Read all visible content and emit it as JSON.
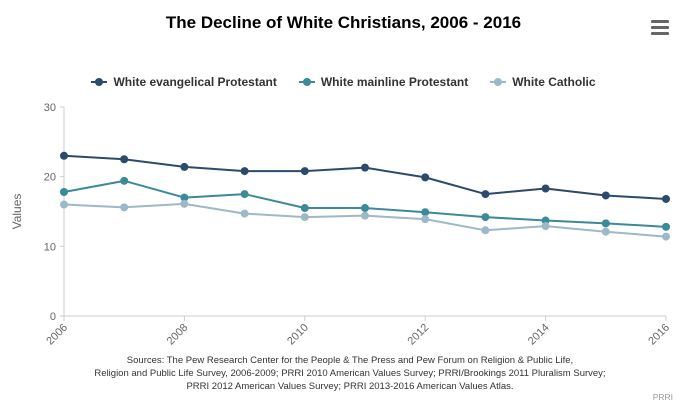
{
  "chart_data": {
    "type": "line",
    "title": "The Decline of White Christians, 2006 - 2016",
    "ylabel": "Values",
    "xlabel": "",
    "x": [
      2006,
      2007,
      2008,
      2009,
      2010,
      2011,
      2012,
      2013,
      2014,
      2015,
      2016
    ],
    "x_ticks": [
      "2006",
      "2008",
      "2010",
      "2012",
      "2014",
      "2016"
    ],
    "y_ticks": [
      "0",
      "10",
      "20",
      "30"
    ],
    "ylim": [
      0,
      30
    ],
    "xlim": [
      2006,
      2016
    ],
    "grid": false,
    "legend_position": "top-center",
    "series": [
      {
        "name": "White evangelical Protestant",
        "color": "#2c4a6b",
        "values": [
          23.0,
          22.5,
          21.4,
          20.8,
          20.8,
          21.3,
          19.9,
          17.5,
          18.3,
          17.3,
          16.8
        ]
      },
      {
        "name": "White mainline Protestant",
        "color": "#3a8a99",
        "values": [
          17.8,
          19.4,
          17.0,
          17.5,
          15.5,
          15.5,
          14.9,
          14.2,
          13.7,
          13.3,
          12.8
        ]
      },
      {
        "name": "White Catholic",
        "color": "#9db8c6",
        "values": [
          16.0,
          15.6,
          16.1,
          14.7,
          14.2,
          14.4,
          13.9,
          12.3,
          12.9,
          12.1,
          11.4
        ]
      }
    ]
  },
  "menu": {
    "icon": "hamburger-menu-icon"
  },
  "sources": [
    "Sources: The Pew Research Center for the People & The Press and Pew Forum on Religion & Public Life,",
    "Religion and Public Life Survey, 2006-2009; PRRI 2010 American Values Survey; PRRI/Brookings 2011 Pluralism Survey;",
    "PRRI 2012 American Values Survey; PRRI 2013-2016 American Values Atlas."
  ],
  "credit": "PRRI"
}
